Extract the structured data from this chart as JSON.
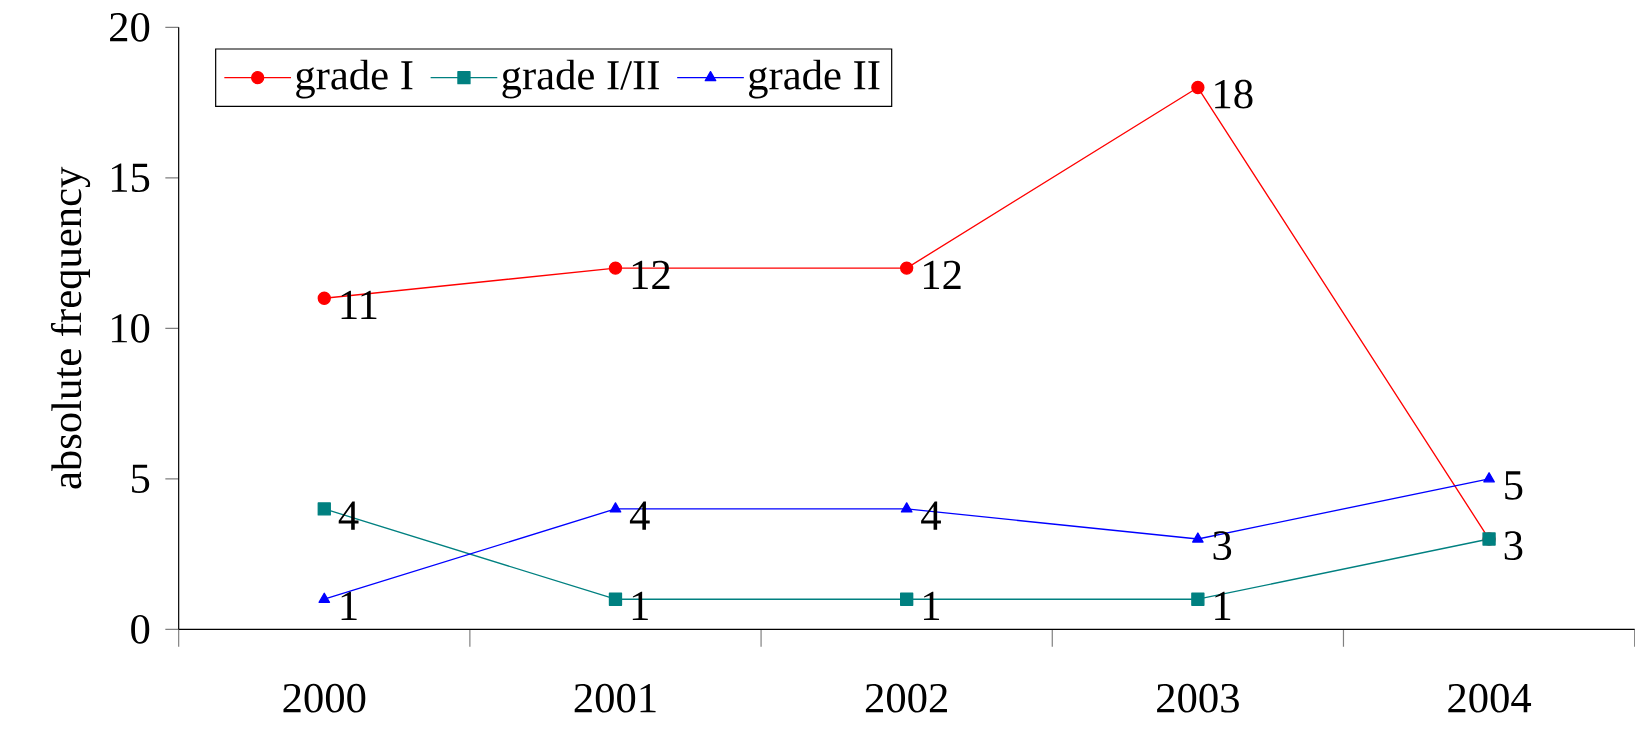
{
  "chart_data": {
    "type": "line",
    "ylabel": "absolute frequency",
    "categories": [
      "2000",
      "2001",
      "2002",
      "2003",
      "2004"
    ],
    "series": [
      {
        "name": "grade I",
        "color": "#ff0000",
        "marker": "circle",
        "values": [
          11,
          12,
          12,
          18,
          3
        ],
        "value_labels": [
          "11",
          "12",
          "12",
          "18",
          null
        ]
      },
      {
        "name": "grade I/II",
        "color": "#008080",
        "marker": "square",
        "values": [
          4,
          1,
          1,
          1,
          3
        ],
        "value_labels": [
          "4",
          "1",
          "1",
          "1",
          "3"
        ]
      },
      {
        "name": "grade II",
        "color": "#0000ff",
        "marker": "triangle",
        "values": [
          1,
          4,
          4,
          3,
          5
        ],
        "value_labels": [
          "1",
          "4",
          "4",
          "3",
          "5"
        ]
      }
    ],
    "ylim": [
      0,
      20
    ],
    "yticks": [
      0,
      5,
      10,
      15,
      20
    ],
    "grid": false,
    "legend": "top left",
    "line_style": "solid"
  }
}
